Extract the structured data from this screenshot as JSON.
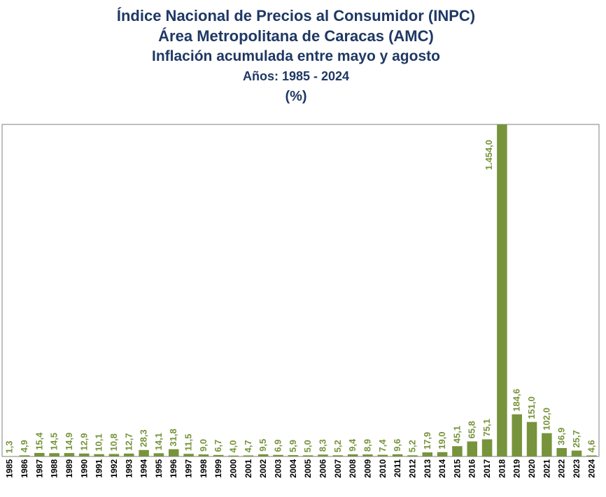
{
  "title_lines": [
    "Índice Nacional de Precios al Consumidor (INPC)",
    "Área Metropolitana de Caracas (AMC)",
    "Inflación acumulada entre mayo y agosto",
    "Años: 1985 - 2024",
    "(%)"
  ],
  "colors": {
    "bar": "#77933c",
    "label": "#77933c",
    "title": "#1f3864",
    "axis": "#7f7f7f"
  },
  "chart_data": {
    "type": "bar",
    "title": "Índice Nacional de Precios al Consumidor (INPC) / Área Metropolitana de Caracas (AMC) / Inflación acumulada entre mayo y agosto / Años: 1985 - 2024 / (%)",
    "xlabel": "",
    "ylabel": "",
    "ylim": [
      0,
      1454.0
    ],
    "grid": false,
    "legend": "none",
    "categories": [
      "1985",
      "1986",
      "1987",
      "1988",
      "1989",
      "1990",
      "1991",
      "1992",
      "1993",
      "1994",
      "1995",
      "1996",
      "1997",
      "1998",
      "1999",
      "2000",
      "2001",
      "2002",
      "2003",
      "2004",
      "2005",
      "2006",
      "2007",
      "2008",
      "2009",
      "2010",
      "2011",
      "2012",
      "2013",
      "2014",
      "2015",
      "2016",
      "2017",
      "2018",
      "2019",
      "2020",
      "2021",
      "2022",
      "2023",
      "2024"
    ],
    "values": [
      1.3,
      4.9,
      15.4,
      14.5,
      14.9,
      12.9,
      10.1,
      10.8,
      12.7,
      28.3,
      14.1,
      31.8,
      11.5,
      9.0,
      6.7,
      4.0,
      4.7,
      9.5,
      6.9,
      5.9,
      5.0,
      8.3,
      5.2,
      9.4,
      8.9,
      7.4,
      9.6,
      5.2,
      17.9,
      19.0,
      45.1,
      65.8,
      75.1,
      1454.0,
      184.6,
      151.0,
      102.0,
      36.9,
      25.7,
      4.6
    ],
    "labels": [
      "1,3",
      "4,9",
      "15,4",
      "14,5",
      "14,9",
      "12,9",
      "10,1",
      "10,8",
      "12,7",
      "28,3",
      "14,1",
      "31,8",
      "11,5",
      "9,0",
      "6,7",
      "4,0",
      "4,7",
      "9,5",
      "6,9",
      "5,9",
      "5,0",
      "8,3",
      "5,2",
      "9,4",
      "8,9",
      "7,4",
      "9,6",
      "5,2",
      "17,9",
      "19,0",
      "45,1",
      "65,8",
      "75,1",
      "1.454,0",
      "184,6",
      "151,0",
      "102,0",
      "36,9",
      "25,7",
      "4,6"
    ]
  }
}
